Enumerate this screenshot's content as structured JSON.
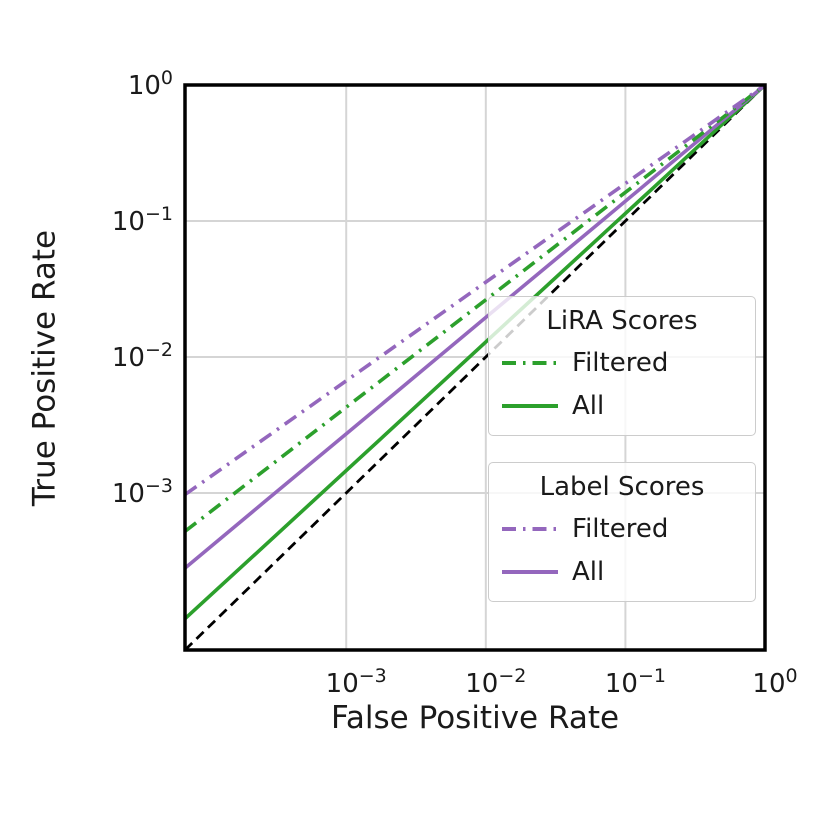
{
  "figure": {
    "background": "#ffffff"
  },
  "chart_data": {
    "type": "line",
    "title": "",
    "xlabel": "False Positive Rate",
    "ylabel": "True Positive Rate",
    "x_scale": "log",
    "y_scale": "log",
    "xlim": [
      7e-05,
      1.0
    ],
    "ylim": [
      7e-05,
      1.0
    ],
    "grid": true,
    "grid_color": "#d5d5d5",
    "frame_color": "#000000",
    "x_ticks": [
      {
        "value": 0.001,
        "base": "10",
        "exp": "−3"
      },
      {
        "value": 0.01,
        "base": "10",
        "exp": "−2"
      },
      {
        "value": 0.1,
        "base": "10",
        "exp": "−1"
      },
      {
        "value": 1.0,
        "base": "10",
        "exp": "0"
      }
    ],
    "y_ticks": [
      {
        "value": 1.0,
        "base": "10",
        "exp": "0"
      },
      {
        "value": 0.1,
        "base": "10",
        "exp": "−1"
      },
      {
        "value": 0.01,
        "base": "10",
        "exp": "−2"
      },
      {
        "value": 0.001,
        "base": "10",
        "exp": "−3"
      }
    ],
    "x": [
      7e-05,
      0.000251,
      0.001,
      0.00398,
      0.0158,
      0.0631,
      0.158,
      0.316,
      0.501,
      0.708,
      1.0
    ],
    "series": [
      {
        "name": "chance-diagonal",
        "color": "#000000",
        "linestyle": "dashed",
        "width": 2.8,
        "in_legend": false,
        "y": [
          7e-05,
          0.000251,
          0.001,
          0.00398,
          0.0158,
          0.0631,
          0.158,
          0.316,
          0.501,
          0.708,
          1.0
        ]
      },
      {
        "name": "LiRA All",
        "color": "#2ca02c",
        "linestyle": "solid",
        "width": 3.6,
        "in_legend": true,
        "y": [
          0.000119,
          0.000396,
          0.00146,
          0.00539,
          0.0199,
          0.0735,
          0.175,
          0.337,
          0.521,
          0.722,
          1.0
        ]
      },
      {
        "name": "Label All",
        "color": "#9467bd",
        "linestyle": "solid",
        "width": 3.6,
        "in_legend": true,
        "y": [
          0.00028,
          0.000836,
          0.00272,
          0.00887,
          0.0289,
          0.0942,
          0.207,
          0.374,
          0.554,
          0.744,
          1.0
        ]
      },
      {
        "name": "LiRA Filtered",
        "color": "#2ca02c",
        "linestyle": "dashdot",
        "width": 3.6,
        "in_legend": true,
        "y": [
          0.000522,
          0.00143,
          0.00427,
          0.0127,
          0.0378,
          0.113,
          0.233,
          0.403,
          0.579,
          0.761,
          1.0
        ]
      },
      {
        "name": "Label Filtered",
        "color": "#9467bd",
        "linestyle": "dashdot",
        "width": 3.6,
        "in_legend": true,
        "y": [
          0.000973,
          0.00245,
          0.00668,
          0.0182,
          0.0495,
          0.135,
          0.263,
          0.434,
          0.606,
          0.778,
          1.0
        ]
      }
    ],
    "legends": [
      {
        "title": "LiRA Scores",
        "items": [
          {
            "label": "Filtered",
            "color": "#2ca02c",
            "linestyle": "dashdot"
          },
          {
            "label": "All",
            "color": "#2ca02c",
            "linestyle": "solid"
          }
        ]
      },
      {
        "title": "Label Scores",
        "items": [
          {
            "label": "Filtered",
            "color": "#9467bd",
            "linestyle": "dashdot"
          },
          {
            "label": "All",
            "color": "#9467bd",
            "linestyle": "solid"
          }
        ]
      }
    ]
  }
}
